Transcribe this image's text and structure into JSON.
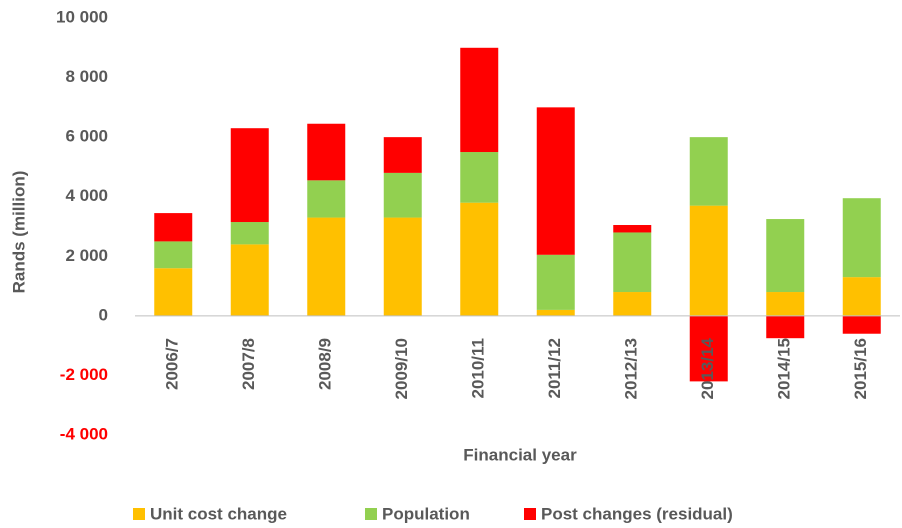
{
  "chart_data": {
    "type": "stacked_bar",
    "x_label": "Financial year",
    "y_label": "Rands (million)",
    "categories": [
      "2006/7",
      "2007/8",
      "2008/9",
      "2009/10",
      "2010/11",
      "2011/12",
      "2012/13",
      "2013/14",
      "2014/15",
      "2015/16"
    ],
    "series": [
      {
        "name": "Unit cost change",
        "color": "#FFC000",
        "values": [
          1600,
          2400,
          3300,
          3300,
          3800,
          200,
          800,
          3700,
          800,
          1300
        ]
      },
      {
        "name": "Population",
        "color": "#92D050",
        "values": [
          900,
          750,
          1250,
          1500,
          1700,
          1850,
          2000,
          2300,
          2450,
          2650
        ]
      },
      {
        "name": "Post changes (residual)",
        "color": "#FF0000",
        "values": [
          950,
          3150,
          1900,
          1200,
          3500,
          4950,
          250,
          -2200,
          -750,
          -600
        ]
      }
    ],
    "ylim": [
      -4000,
      10000
    ],
    "yticks": [
      {
        "value": -4000,
        "label": "-4 000"
      },
      {
        "value": -2000,
        "label": "-2 000"
      },
      0,
      {
        "value": 2000,
        "label": "2 000"
      },
      {
        "value": 4000,
        "label": "4 000"
      },
      {
        "value": 6000,
        "label": "6 000"
      },
      {
        "value": 8000,
        "label": "8 000"
      },
      {
        "value": 10000,
        "label": "10 000"
      }
    ],
    "legend": "bottom"
  }
}
